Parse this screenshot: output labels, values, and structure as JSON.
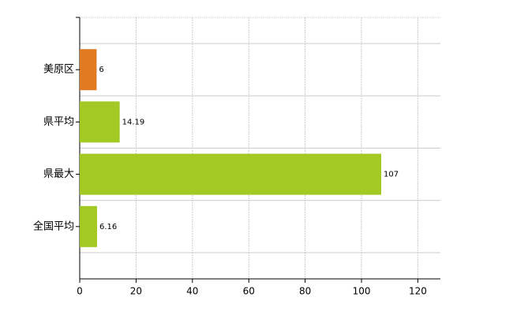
{
  "chart_data": {
    "type": "hbar",
    "categories": [
      "美原区",
      "県平均",
      "県最大",
      "全国平均"
    ],
    "values": [
      6,
      14.19,
      107,
      6.16
    ],
    "colors": [
      "#e07a23",
      "#a3c924",
      "#a3c924",
      "#a3c924"
    ],
    "xlim": [
      0,
      128
    ],
    "xticks": [
      0,
      20,
      40,
      60,
      80,
      100,
      120
    ],
    "grid": true
  }
}
